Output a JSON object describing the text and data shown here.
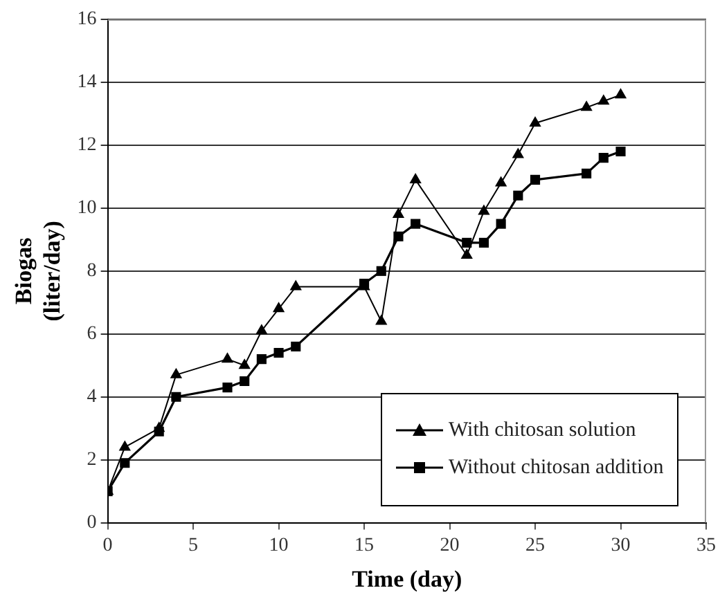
{
  "chart_data": {
    "type": "line",
    "xlabel": "Time (day)",
    "ylabel": "Biogas\n(liter/day)",
    "xlim": [
      0,
      35
    ],
    "xticks": [
      0,
      5,
      10,
      15,
      20,
      25,
      30,
      35
    ],
    "ylim": [
      0,
      16
    ],
    "yticks": [
      0,
      2,
      4,
      6,
      8,
      10,
      12,
      14,
      16
    ],
    "grid": "y",
    "legend": "bottom right",
    "line_style": "solid",
    "series": [
      {
        "name": "With chitosan solution",
        "color": "#000000",
        "marker": "triangle",
        "x": [
          0,
          1,
          3,
          4,
          7,
          8,
          9,
          10,
          11,
          15,
          16,
          17,
          18,
          21,
          22,
          23,
          24,
          25,
          28,
          29,
          30
        ],
        "values": [
          1.0,
          2.4,
          3.0,
          4.7,
          5.2,
          5.0,
          6.1,
          6.8,
          7.5,
          7.5,
          6.4,
          9.8,
          10.9,
          8.5,
          9.9,
          10.8,
          11.7,
          12.7,
          13.2,
          13.4,
          13.6
        ]
      },
      {
        "name": "Without chitosan addition",
        "color": "#000000",
        "marker": "square",
        "x": [
          0,
          1,
          3,
          4,
          7,
          8,
          9,
          10,
          11,
          15,
          16,
          17,
          18,
          21,
          22,
          23,
          24,
          25,
          28,
          29,
          30
        ],
        "values": [
          1.0,
          1.9,
          2.9,
          4.0,
          4.3,
          4.5,
          5.2,
          5.4,
          5.6,
          7.6,
          8.0,
          9.1,
          9.5,
          8.9,
          8.9,
          9.5,
          10.4,
          10.9,
          11.1,
          11.6,
          11.8
        ]
      }
    ]
  }
}
